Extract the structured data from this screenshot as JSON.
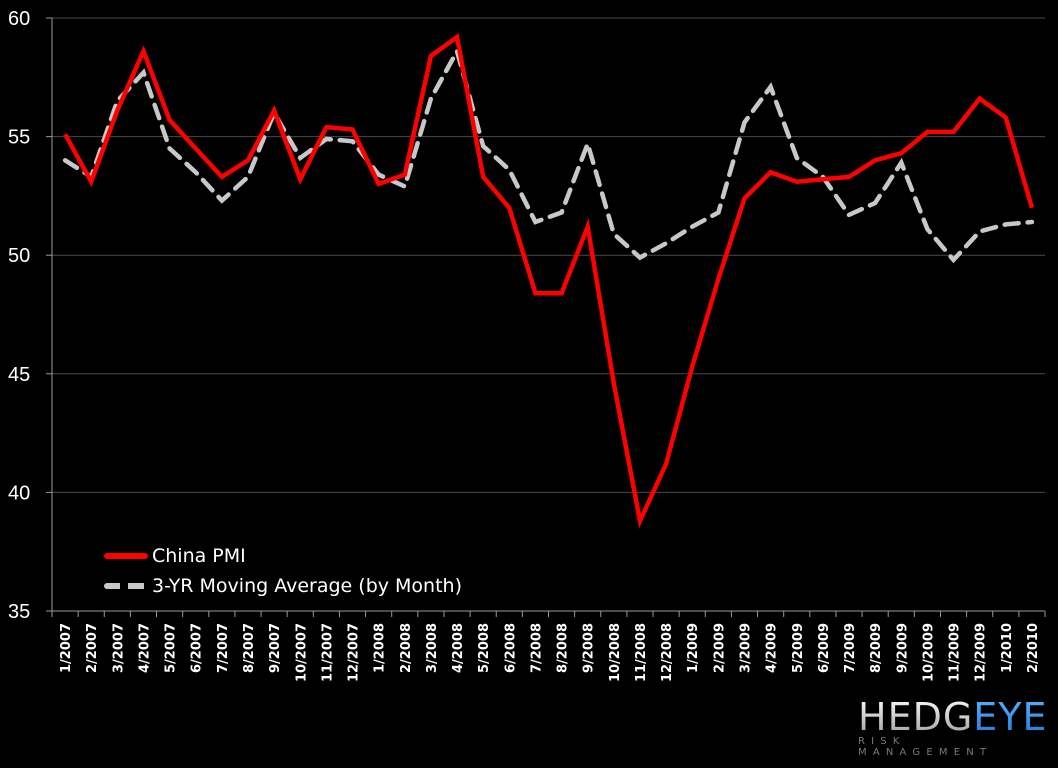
{
  "chart_data": {
    "type": "line",
    "title": "",
    "xlabel": "",
    "ylabel": "",
    "ylim": [
      35,
      60
    ],
    "yticks": [
      35,
      40,
      45,
      50,
      55,
      60
    ],
    "grid": true,
    "legend_position": "lower-left (inside plot)",
    "categories": [
      "1/2007",
      "2/2007",
      "3/2007",
      "4/2007",
      "5/2007",
      "6/2007",
      "7/2007",
      "8/2007",
      "9/2007",
      "10/2007",
      "11/2007",
      "12/2007",
      "1/2008",
      "2/2008",
      "3/2008",
      "4/2008",
      "5/2008",
      "6/2008",
      "7/2008",
      "8/2008",
      "9/2008",
      "10/2008",
      "11/2008",
      "12/2008",
      "1/2009",
      "2/2009",
      "3/2009",
      "4/2009",
      "5/2009",
      "6/2009",
      "7/2009",
      "8/2009",
      "9/2009",
      "10/2009",
      "11/2009",
      "12/2009",
      "1/2010",
      "2/2010"
    ],
    "series": [
      {
        "name": "China PMI",
        "color": "#ff0000",
        "style": "solid",
        "values": [
          55.1,
          53.1,
          56.1,
          58.6,
          55.7,
          54.5,
          53.3,
          54.0,
          56.1,
          53.2,
          55.4,
          55.3,
          53.0,
          53.4,
          58.4,
          59.2,
          53.3,
          52.0,
          48.4,
          48.4,
          51.2,
          44.6,
          38.8,
          41.2,
          45.3,
          49.0,
          52.4,
          53.5,
          53.1,
          53.2,
          53.3,
          54.0,
          54.3,
          55.2,
          55.2,
          56.6,
          55.8,
          52.0
        ]
      },
      {
        "name": "3-YR Moving Average (by Month)",
        "color": "#c8c8c8",
        "style": "dashed",
        "values": [
          54.0,
          53.3,
          56.5,
          57.7,
          54.5,
          53.5,
          52.3,
          53.3,
          56.0,
          54.1,
          54.9,
          54.8,
          53.4,
          52.9,
          56.6,
          58.6,
          54.6,
          53.6,
          51.4,
          51.8,
          54.7,
          50.9,
          49.9,
          50.5,
          51.2,
          51.8,
          55.6,
          57.1,
          54.1,
          53.3,
          51.7,
          52.2,
          53.9,
          51.1,
          49.8,
          51.0,
          51.3,
          51.4
        ]
      }
    ]
  },
  "legend": {
    "items": [
      {
        "label": "China PMI"
      },
      {
        "label": "3-YR Moving Average (by Month)"
      }
    ]
  },
  "logo": {
    "part1": "HEDG",
    "part2": "EYE",
    "tagline": "RISK MANAGEMENT"
  }
}
